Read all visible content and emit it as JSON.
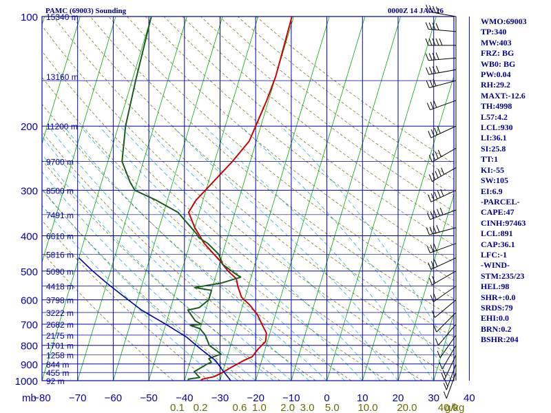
{
  "header": {
    "station": "PAMC (69003) Sounding",
    "time": "0000Z 14 JAN 26"
  },
  "colors": {
    "temperature": "#cc0000",
    "dewpoint": "#1a5a1a",
    "parcel": "#0000aa",
    "grid": "#0000aa",
    "isotherm": "#00aa00",
    "dry_adiabat": "#6a6a00",
    "moist_adiabat": "#00aacc",
    "text": "#00008b"
  },
  "chart_data": {
    "type": "line",
    "title": "",
    "y_scale": "log",
    "pressure_levels": [
      100,
      200,
      300,
      400,
      500,
      600,
      700,
      800,
      900,
      1000
    ],
    "pressure_tick_labels": [
      "100",
      "200",
      "300",
      "400",
      "500",
      "600",
      "700",
      "800",
      "900",
      "1000"
    ],
    "temperature_ticks": [
      -80,
      -70,
      -60,
      -50,
      -40,
      -30,
      -20,
      -10,
      0,
      10,
      20,
      30,
      40
    ],
    "temperature_tick_labels": [
      "−80",
      "−70",
      "−60",
      "−50",
      "−40",
      "−30",
      "−20",
      "−10",
      "0",
      "10",
      "20",
      "30",
      "40"
    ],
    "x_corner_label": "mb",
    "mixing_ratio_labels": [
      {
        "text": "0.1",
        "x_value": -42
      },
      {
        "text": "0.2",
        "x_value": -35.5
      },
      {
        "text": "0.6",
        "x_value": -24.5
      },
      {
        "text": "1.0",
        "x_value": -19
      },
      {
        "text": "2.0",
        "x_value": -11
      },
      {
        "text": "3.0",
        "x_value": -5.5
      },
      {
        "text": "5.0",
        "x_value": 1.5
      },
      {
        "text": "10.0",
        "x_value": 11.5
      },
      {
        "text": "20.0",
        "x_value": 22.5
      },
      {
        "text": "40.0",
        "x_value": 34
      }
    ],
    "mixing_ratio_unit": "g/kg",
    "height_labels": [
      {
        "p": 100,
        "text": "15340 m"
      },
      {
        "p": 146,
        "text": "13160 m"
      },
      {
        "p": 200,
        "text": "11200 m"
      },
      {
        "p": 250,
        "text": "9700 m"
      },
      {
        "p": 300,
        "text": "8500 m"
      },
      {
        "p": 350,
        "text": "7491 m"
      },
      {
        "p": 400,
        "text": "6610 m"
      },
      {
        "p": 450,
        "text": "5816 m"
      },
      {
        "p": 500,
        "text": "5090 m"
      },
      {
        "p": 550,
        "text": "4418 m"
      },
      {
        "p": 600,
        "text": "3798 m"
      },
      {
        "p": 650,
        "text": "3222 m"
      },
      {
        "p": 700,
        "text": "2682 m"
      },
      {
        "p": 750,
        "text": "2175 m"
      },
      {
        "p": 800,
        "text": "1701 m"
      },
      {
        "p": 850,
        "text": "1258 m"
      },
      {
        "p": 900,
        "text": "844 m"
      },
      {
        "p": 950,
        "text": "455 m"
      },
      {
        "p": 1000,
        "text": "92 m"
      }
    ],
    "series": [
      {
        "name": "",
        "role": "temperature",
        "points": [
          [
            -40.5,
            100
          ],
          [
            -40,
            146
          ],
          [
            -40.5,
            170
          ],
          [
            -42,
            220
          ],
          [
            -45,
            250
          ],
          [
            -52,
            320
          ],
          [
            -53,
            345
          ],
          [
            -50,
            380
          ],
          [
            -46,
            420
          ],
          [
            -40,
            470
          ],
          [
            -37,
            500
          ],
          [
            -34,
            525
          ],
          [
            -33,
            550
          ],
          [
            -31,
            590
          ],
          [
            -28,
            620
          ],
          [
            -25,
            660
          ],
          [
            -23,
            700
          ],
          [
            -21,
            740
          ],
          [
            -20.5,
            780
          ],
          [
            -22,
            820
          ],
          [
            -23,
            860
          ],
          [
            -25,
            880
          ],
          [
            -28,
            920
          ],
          [
            -30,
            950
          ],
          [
            -32,
            975
          ],
          [
            -35,
            990
          ],
          [
            -35.5,
            1000
          ]
        ]
      },
      {
        "name": "",
        "role": "dewpoint",
        "points": [
          [
            -80,
            100
          ],
          [
            -79,
            150
          ],
          [
            -78,
            200
          ],
          [
            -76,
            250
          ],
          [
            -72,
            285
          ],
          [
            -70,
            300
          ],
          [
            -63,
            320
          ],
          [
            -56,
            345
          ],
          [
            -51,
            380
          ],
          [
            -49,
            395
          ],
          [
            -48,
            405
          ],
          [
            -45,
            420
          ],
          [
            -41,
            450
          ],
          [
            -39,
            480
          ],
          [
            -36,
            500
          ],
          [
            -33,
            520
          ],
          [
            -38,
            540
          ],
          [
            -45,
            555
          ],
          [
            -40,
            565
          ],
          [
            -40,
            600
          ],
          [
            -42,
            630
          ],
          [
            -45,
            640
          ],
          [
            -44,
            655
          ],
          [
            -42,
            685
          ],
          [
            -40,
            700
          ],
          [
            -43,
            705
          ],
          [
            -40,
            720
          ],
          [
            -38,
            750
          ],
          [
            -36,
            800
          ],
          [
            -32,
            845
          ],
          [
            -35,
            870
          ],
          [
            -34,
            890
          ],
          [
            -35,
            900
          ],
          [
            -38,
            945
          ],
          [
            -36,
            980
          ],
          [
            -39,
            990
          ],
          [
            -39,
            1000
          ]
        ]
      },
      {
        "name": "",
        "role": "parcel",
        "points": [
          [
            -80,
            460
          ],
          [
            -75,
            500
          ],
          [
            -70,
            540
          ],
          [
            -65,
            580
          ],
          [
            -58,
            640
          ],
          [
            -50,
            700
          ],
          [
            -43,
            760
          ],
          [
            -38,
            820
          ],
          [
            -33,
            880
          ],
          [
            -30,
            940
          ],
          [
            -27,
            1000
          ]
        ]
      }
    ],
    "wind_barbs": [
      {
        "p": 100,
        "dir": 280,
        "spd": 40
      },
      {
        "p": 110,
        "dir": 275,
        "spd": 45
      },
      {
        "p": 120,
        "dir": 270,
        "spd": 50
      },
      {
        "p": 130,
        "dir": 265,
        "spd": 45
      },
      {
        "p": 140,
        "dir": 260,
        "spd": 40
      },
      {
        "p": 150,
        "dir": 255,
        "spd": 35
      },
      {
        "p": 170,
        "dir": 250,
        "spd": 35
      },
      {
        "p": 200,
        "dir": 245,
        "spd": 40
      },
      {
        "p": 230,
        "dir": 240,
        "spd": 45
      },
      {
        "p": 260,
        "dir": 240,
        "spd": 50
      },
      {
        "p": 300,
        "dir": 245,
        "spd": 55
      },
      {
        "p": 340,
        "dir": 250,
        "spd": 50
      },
      {
        "p": 380,
        "dir": 255,
        "spd": 40
      },
      {
        "p": 420,
        "dir": 250,
        "spd": 35
      },
      {
        "p": 460,
        "dir": 245,
        "spd": 30
      },
      {
        "p": 500,
        "dir": 240,
        "spd": 25
      },
      {
        "p": 550,
        "dir": 235,
        "spd": 20
      },
      {
        "p": 600,
        "dir": 230,
        "spd": 15
      },
      {
        "p": 650,
        "dir": 225,
        "spd": 15
      },
      {
        "p": 700,
        "dir": 220,
        "spd": 10
      },
      {
        "p": 750,
        "dir": 215,
        "spd": 10
      },
      {
        "p": 800,
        "dir": 210,
        "spd": 15
      },
      {
        "p": 850,
        "dir": 205,
        "spd": 20
      },
      {
        "p": 900,
        "dir": 200,
        "spd": 20
      },
      {
        "p": 950,
        "dir": 200,
        "spd": 15
      }
    ]
  },
  "sidebar": {
    "lines": [
      "WMO:69003",
      "TP:340",
      "MW:403",
      "FRZ: BG",
      "WB0: BG",
      "PW:0.04",
      "RH:29.2",
      "MAXT:-12.6",
      "TH:4998",
      "L57:4.2",
      "LCL:930",
      "LI:36.1",
      "SI:25.8",
      "TT:1",
      "KI:-55",
      "SW:105",
      "EI:6.9",
      "-PARCEL-",
      "CAPE:47",
      "CINH:97463",
      "LCL:891",
      "CAP:36.1",
      "LFC:-1",
      "-WIND-",
      "STM:235/23",
      "HEL:98",
      "SHR+:0.0",
      "SRDS:79",
      "EHI:0.0",
      "BRN:0.2",
      "BSHR:204"
    ]
  }
}
